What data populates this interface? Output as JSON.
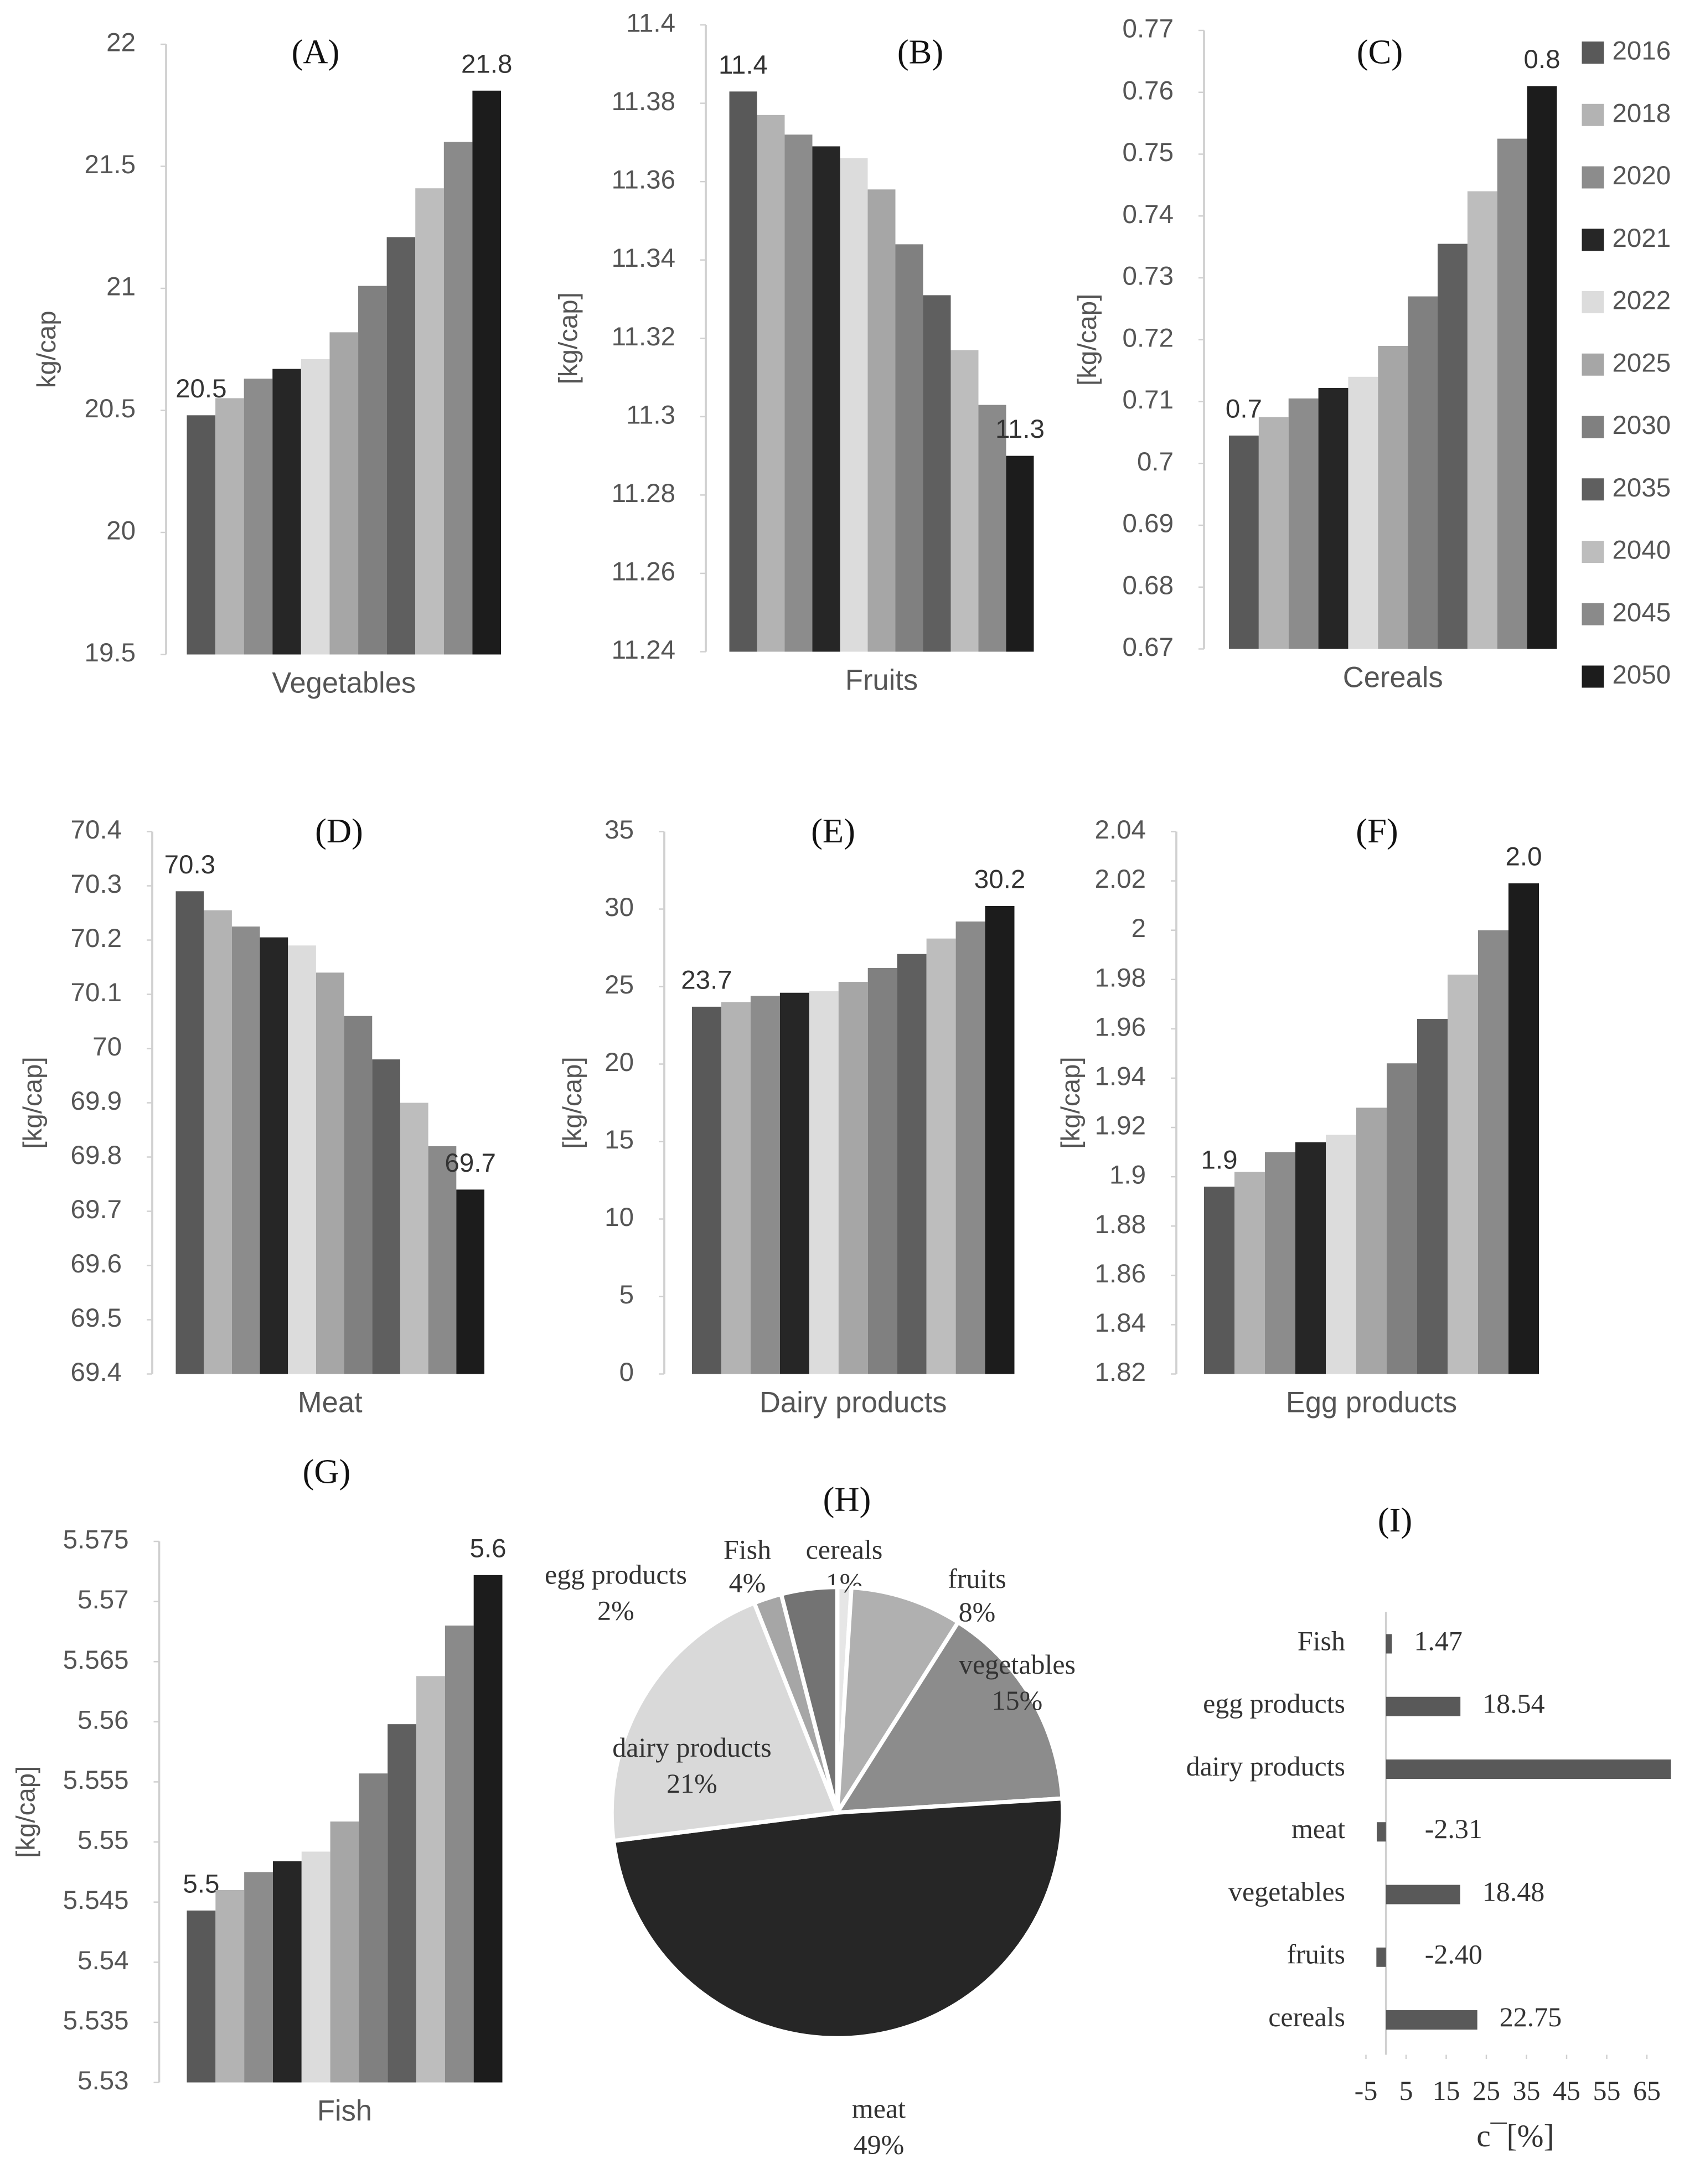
{
  "chart_data": [
    {
      "type": "bar",
      "title": "(A)",
      "ylabel": "kg/cap",
      "categories": [
        "Vegetables"
      ],
      "series": [
        {
          "name": "2016",
          "color": "#595959",
          "values": [
            20.48
          ],
          "value_labels": [
            "20.5"
          ]
        },
        {
          "name": "2018",
          "color": "#b3b3b3",
          "values": [
            20.55
          ]
        },
        {
          "name": "2020",
          "color": "#8c8c8c",
          "values": [
            20.63
          ]
        },
        {
          "name": "2021",
          "color": "#262626",
          "values": [
            20.67
          ]
        },
        {
          "name": "2022",
          "color": "#dcdcdc",
          "values": [
            20.71
          ]
        },
        {
          "name": "2025",
          "color": "#a6a6a6",
          "values": [
            20.82
          ]
        },
        {
          "name": "2030",
          "color": "#808080",
          "values": [
            21.01
          ]
        },
        {
          "name": "2035",
          "color": "#5f5f5f",
          "values": [
            21.21
          ]
        },
        {
          "name": "2040",
          "color": "#bdbdbd",
          "values": [
            21.41
          ]
        },
        {
          "name": "2045",
          "color": "#8a8a8a",
          "values": [
            21.6
          ]
        },
        {
          "name": "2050",
          "color": "#1c1c1c",
          "values": [
            21.81
          ],
          "value_labels": [
            "21.8"
          ]
        }
      ],
      "ylim": [
        19.5,
        22
      ],
      "yticks": [
        19.5,
        20,
        20.5,
        21,
        21.5,
        22
      ]
    },
    {
      "type": "bar",
      "title": "(B)",
      "ylabel": "[kg/cap]",
      "categories": [
        "Fruits"
      ],
      "series": [
        {
          "name": "2016",
          "color": "#595959",
          "values": [
            11.383
          ],
          "value_labels": [
            "11.4"
          ]
        },
        {
          "name": "2018",
          "color": "#b3b3b3",
          "values": [
            11.377
          ]
        },
        {
          "name": "2020",
          "color": "#8c8c8c",
          "values": [
            11.372
          ]
        },
        {
          "name": "2021",
          "color": "#262626",
          "values": [
            11.369
          ]
        },
        {
          "name": "2022",
          "color": "#dcdcdc",
          "values": [
            11.366
          ]
        },
        {
          "name": "2025",
          "color": "#a6a6a6",
          "values": [
            11.358
          ]
        },
        {
          "name": "2030",
          "color": "#808080",
          "values": [
            11.344
          ]
        },
        {
          "name": "2035",
          "color": "#5f5f5f",
          "values": [
            11.331
          ]
        },
        {
          "name": "2040",
          "color": "#bdbdbd",
          "values": [
            11.317
          ]
        },
        {
          "name": "2045",
          "color": "#8a8a8a",
          "values": [
            11.303
          ]
        },
        {
          "name": "2050",
          "color": "#1c1c1c",
          "values": [
            11.29
          ],
          "value_labels": [
            "11.3"
          ]
        }
      ],
      "ylim": [
        11.24,
        11.4
      ],
      "yticks": [
        11.24,
        11.26,
        11.28,
        11.3,
        11.32,
        11.34,
        11.36,
        11.38,
        11.4
      ]
    },
    {
      "type": "bar",
      "title": "(C)",
      "ylabel": "[kg/cap]",
      "categories": [
        "Cereals"
      ],
      "legend": "right",
      "series": [
        {
          "name": "2016",
          "color": "#595959",
          "values": [
            0.7045
          ],
          "value_labels": [
            "0.7"
          ]
        },
        {
          "name": "2018",
          "color": "#b3b3b3",
          "values": [
            0.7075
          ]
        },
        {
          "name": "2020",
          "color": "#8c8c8c",
          "values": [
            0.7105
          ]
        },
        {
          "name": "2021",
          "color": "#262626",
          "values": [
            0.7122
          ]
        },
        {
          "name": "2022",
          "color": "#dcdcdc",
          "values": [
            0.714
          ]
        },
        {
          "name": "2025",
          "color": "#a6a6a6",
          "values": [
            0.719
          ]
        },
        {
          "name": "2030",
          "color": "#808080",
          "values": [
            0.727
          ]
        },
        {
          "name": "2035",
          "color": "#5f5f5f",
          "values": [
            0.7355
          ]
        },
        {
          "name": "2040",
          "color": "#bdbdbd",
          "values": [
            0.744
          ]
        },
        {
          "name": "2045",
          "color": "#8a8a8a",
          "values": [
            0.7525
          ]
        },
        {
          "name": "2050",
          "color": "#1c1c1c",
          "values": [
            0.761
          ],
          "value_labels": [
            "0.8"
          ]
        }
      ],
      "ylim": [
        0.67,
        0.77
      ],
      "yticks": [
        0.67,
        0.68,
        0.69,
        0.7,
        0.71,
        0.72,
        0.73,
        0.74,
        0.75,
        0.76,
        0.77
      ]
    },
    {
      "type": "bar",
      "title": "(D)",
      "ylabel": "[kg/cap]",
      "categories": [
        "Meat"
      ],
      "series": [
        {
          "name": "2016",
          "color": "#595959",
          "values": [
            70.29
          ],
          "value_labels": [
            "70.3"
          ]
        },
        {
          "name": "2018",
          "color": "#b3b3b3",
          "values": [
            70.255
          ]
        },
        {
          "name": "2020",
          "color": "#8c8c8c",
          "values": [
            70.225
          ]
        },
        {
          "name": "2021",
          "color": "#262626",
          "values": [
            70.205
          ]
        },
        {
          "name": "2022",
          "color": "#dcdcdc",
          "values": [
            70.19
          ]
        },
        {
          "name": "2025",
          "color": "#a6a6a6",
          "values": [
            70.14
          ]
        },
        {
          "name": "2030",
          "color": "#808080",
          "values": [
            70.06
          ]
        },
        {
          "name": "2035",
          "color": "#5f5f5f",
          "values": [
            69.98
          ]
        },
        {
          "name": "2040",
          "color": "#bdbdbd",
          "values": [
            69.9
          ]
        },
        {
          "name": "2045",
          "color": "#8a8a8a",
          "values": [
            69.82
          ]
        },
        {
          "name": "2050",
          "color": "#1c1c1c",
          "values": [
            69.74
          ],
          "value_labels": [
            "69.7"
          ]
        }
      ],
      "ylim": [
        69.4,
        70.4
      ],
      "yticks": [
        69.4,
        69.5,
        69.6,
        69.7,
        69.8,
        69.9,
        70,
        70.1,
        70.2,
        70.3,
        70.4
      ]
    },
    {
      "type": "bar",
      "title": "(E)",
      "ylabel": "[kg/cap]",
      "categories": [
        "Dairy products"
      ],
      "series": [
        {
          "name": "2016",
          "color": "#595959",
          "values": [
            23.7
          ],
          "value_labels": [
            "23.7"
          ]
        },
        {
          "name": "2018",
          "color": "#b3b3b3",
          "values": [
            24.0
          ]
        },
        {
          "name": "2020",
          "color": "#8c8c8c",
          "values": [
            24.4
          ]
        },
        {
          "name": "2021",
          "color": "#262626",
          "values": [
            24.6
          ]
        },
        {
          "name": "2022",
          "color": "#dcdcdc",
          "values": [
            24.7
          ]
        },
        {
          "name": "2025",
          "color": "#a6a6a6",
          "values": [
            25.3
          ]
        },
        {
          "name": "2030",
          "color": "#808080",
          "values": [
            26.2
          ]
        },
        {
          "name": "2035",
          "color": "#5f5f5f",
          "values": [
            27.1
          ]
        },
        {
          "name": "2040",
          "color": "#bdbdbd",
          "values": [
            28.1
          ]
        },
        {
          "name": "2045",
          "color": "#8a8a8a",
          "values": [
            29.2
          ]
        },
        {
          "name": "2050",
          "color": "#1c1c1c",
          "values": [
            30.2
          ],
          "value_labels": [
            "30.2"
          ]
        }
      ],
      "ylim": [
        0,
        35
      ],
      "yticks": [
        0,
        5,
        10,
        15,
        20,
        25,
        30,
        35
      ]
    },
    {
      "type": "bar",
      "title": "(F)",
      "ylabel": "[kg/cap]",
      "categories": [
        "Egg products"
      ],
      "series": [
        {
          "name": "2016",
          "color": "#595959",
          "values": [
            1.896
          ],
          "value_labels": [
            "1.9"
          ]
        },
        {
          "name": "2018",
          "color": "#b3b3b3",
          "values": [
            1.902
          ]
        },
        {
          "name": "2020",
          "color": "#8c8c8c",
          "values": [
            1.91
          ]
        },
        {
          "name": "2021",
          "color": "#262626",
          "values": [
            1.914
          ]
        },
        {
          "name": "2022",
          "color": "#dcdcdc",
          "values": [
            1.917
          ]
        },
        {
          "name": "2025",
          "color": "#a6a6a6",
          "values": [
            1.928
          ]
        },
        {
          "name": "2030",
          "color": "#808080",
          "values": [
            1.946
          ]
        },
        {
          "name": "2035",
          "color": "#5f5f5f",
          "values": [
            1.964
          ]
        },
        {
          "name": "2040",
          "color": "#bdbdbd",
          "values": [
            1.982
          ]
        },
        {
          "name": "2045",
          "color": "#8a8a8a",
          "values": [
            2.0
          ]
        },
        {
          "name": "2050",
          "color": "#1c1c1c",
          "values": [
            2.019
          ],
          "value_labels": [
            "2.0"
          ]
        }
      ],
      "ylim": [
        1.82,
        2.04
      ],
      "yticks": [
        1.82,
        1.84,
        1.86,
        1.88,
        1.9,
        1.92,
        1.94,
        1.96,
        1.98,
        2,
        2.02,
        2.04
      ]
    },
    {
      "type": "bar",
      "title": "(G)",
      "ylabel": "[kg/cap]",
      "categories": [
        "Fish"
      ],
      "series": [
        {
          "name": "2016",
          "color": "#595959",
          "values": [
            5.5443
          ],
          "value_labels": [
            "5.5"
          ]
        },
        {
          "name": "2018",
          "color": "#b3b3b3",
          "values": [
            5.546
          ]
        },
        {
          "name": "2020",
          "color": "#8c8c8c",
          "values": [
            5.5475
          ]
        },
        {
          "name": "2021",
          "color": "#262626",
          "values": [
            5.5484
          ]
        },
        {
          "name": "2022",
          "color": "#dcdcdc",
          "values": [
            5.5492
          ]
        },
        {
          "name": "2025",
          "color": "#a6a6a6",
          "values": [
            5.5517
          ]
        },
        {
          "name": "2030",
          "color": "#808080",
          "values": [
            5.5557
          ]
        },
        {
          "name": "2035",
          "color": "#5f5f5f",
          "values": [
            5.5598
          ]
        },
        {
          "name": "2040",
          "color": "#bdbdbd",
          "values": [
            5.5638
          ]
        },
        {
          "name": "2045",
          "color": "#8a8a8a",
          "values": [
            5.568
          ]
        },
        {
          "name": "2050",
          "color": "#1c1c1c",
          "values": [
            5.5722
          ],
          "value_labels": [
            "5.6"
          ]
        }
      ],
      "ylim": [
        5.53,
        5.575
      ],
      "yticks": [
        5.53,
        5.535,
        5.54,
        5.545,
        5.55,
        5.555,
        5.56,
        5.565,
        5.57,
        5.575
      ]
    },
    {
      "type": "pie",
      "title": "(H)",
      "categories": [
        "cereals",
        "fruits",
        "vegetables",
        "meat",
        "dairy products",
        "egg products",
        "Fish"
      ],
      "values": [
        1,
        8,
        15,
        49,
        21,
        2,
        4
      ],
      "value_labels": [
        "1%",
        "8%",
        "15%",
        "49%",
        "21%",
        "2%",
        "4%"
      ],
      "colors": [
        "#e6e6e6",
        "#b0b0b0",
        "#8c8c8c",
        "#262626",
        "#d9d9d9",
        "#a6a6a6",
        "#737373"
      ]
    },
    {
      "type": "hbar",
      "title": "(I)",
      "xlabel": "c¯[%]",
      "categories": [
        "Fish",
        "egg products",
        "dairy products",
        "meat",
        "vegetables",
        "fruits",
        "cereals"
      ],
      "values": [
        1.47,
        18.54,
        71,
        -2.31,
        18.48,
        -2.4,
        22.75
      ],
      "value_labels": [
        "1.47",
        "18.54",
        null,
        "-2.31",
        "18.48",
        "-2.40",
        "22.75"
      ],
      "color": "#595959",
      "xlim": [
        -5,
        72
      ],
      "xticks": [
        -5,
        5,
        15,
        25,
        35,
        45,
        55,
        65
      ]
    }
  ]
}
